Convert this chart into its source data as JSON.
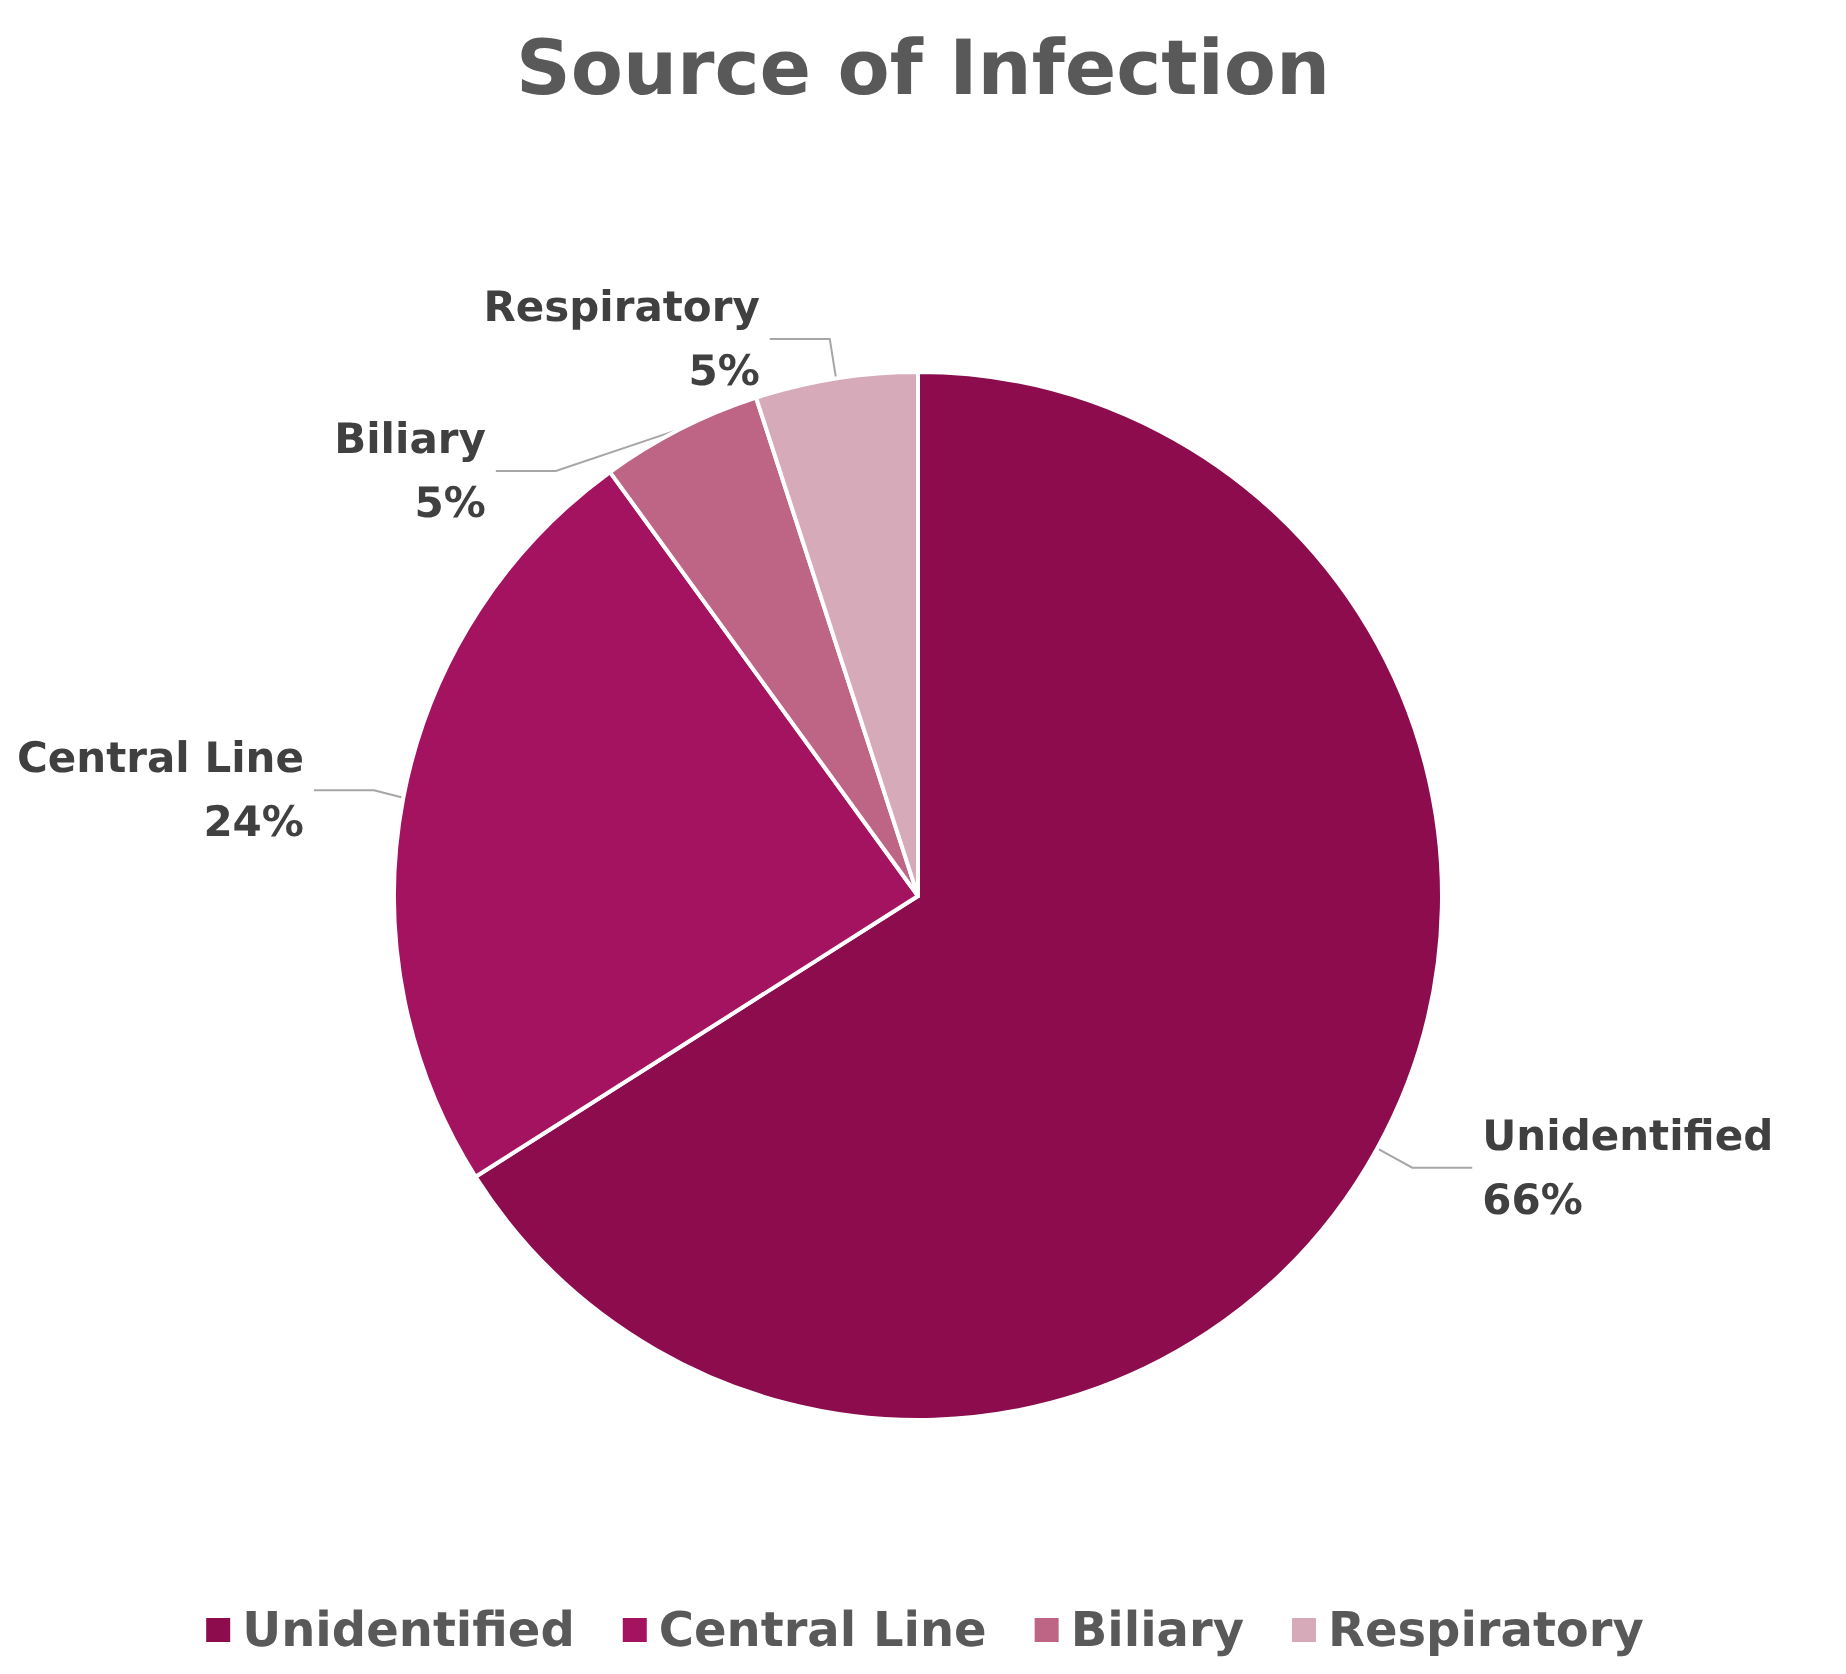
{
  "chart_data": {
    "type": "pie",
    "title": "Source of Infection",
    "categories": [
      "Unidentified",
      "Central Line",
      "Biliary",
      "Respiratory"
    ],
    "values": [
      66,
      24,
      5,
      5
    ],
    "colors": [
      "#8c0c4e",
      "#a4135f",
      "#be6586",
      "#d6aab9"
    ],
    "value_labels": [
      "66%",
      "24%",
      "5%",
      "5%"
    ],
    "legend": "bottom"
  }
}
